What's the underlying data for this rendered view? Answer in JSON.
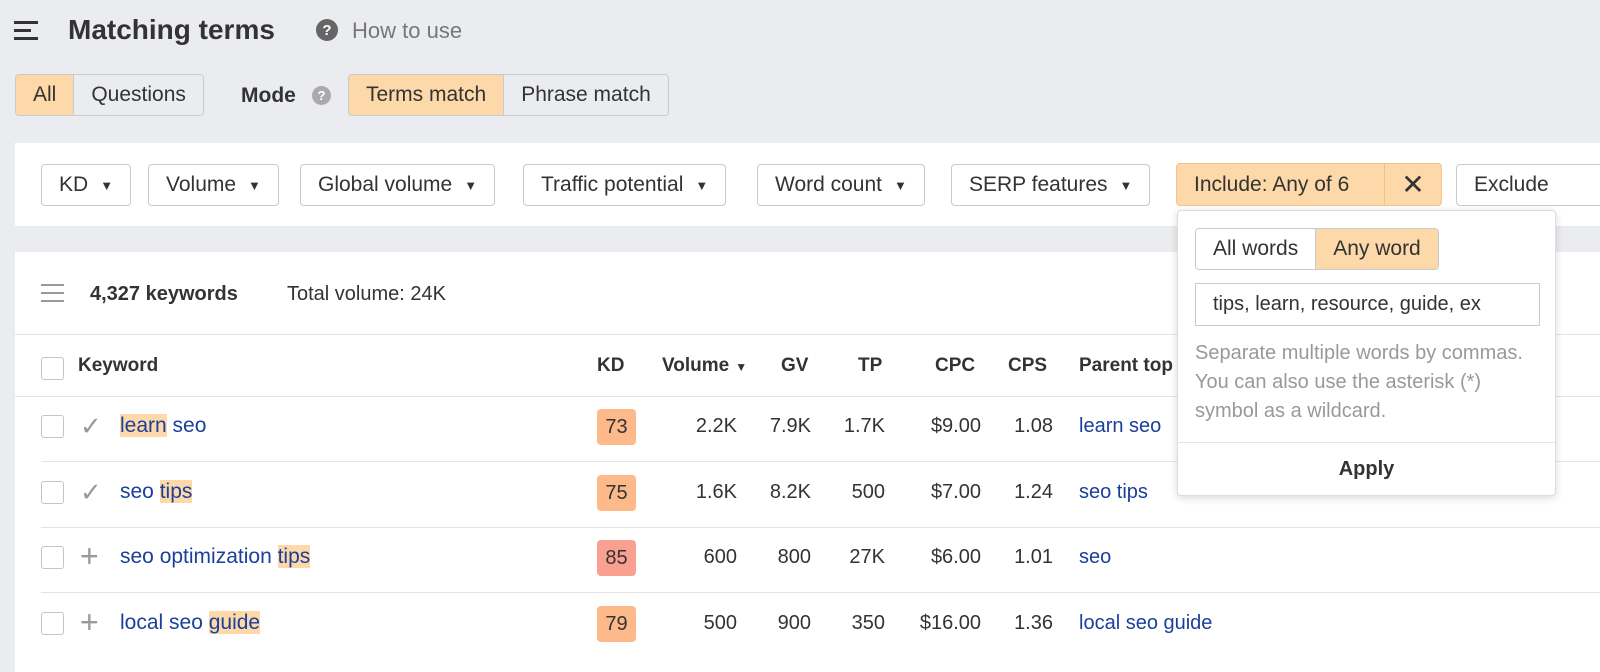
{
  "header": {
    "title": "Matching terms",
    "help_link": "How to use"
  },
  "type_tabs": [
    {
      "label": "All",
      "active": true
    },
    {
      "label": "Questions",
      "active": false
    }
  ],
  "mode": {
    "label": "Mode",
    "options": [
      {
        "label": "Terms match",
        "active": true
      },
      {
        "label": "Phrase match",
        "active": false
      }
    ]
  },
  "filters": [
    "KD",
    "Volume",
    "Global volume",
    "Traffic potential",
    "Word count",
    "SERP features"
  ],
  "include_filter": {
    "label": "Include: Any of 6"
  },
  "exclude_filter": {
    "label": "Exclude"
  },
  "include_popup": {
    "modes": [
      {
        "label": "All words",
        "active": false
      },
      {
        "label": "Any word",
        "active": true
      }
    ],
    "input_value": "tips, learn, resource, guide, ex",
    "hint": "Separate multiple words by commas. You can also use the asterisk (*) symbol as a wildcard.",
    "apply": "Apply"
  },
  "summary": {
    "count": "4,327 keywords",
    "total_volume": "Total volume: 24K"
  },
  "table": {
    "columns": {
      "keyword": "Keyword",
      "kd": "KD",
      "volume": "Volume",
      "gv": "GV",
      "tp": "TP",
      "cpc": "CPC",
      "cps": "CPS",
      "parent": "Parent top"
    },
    "rows": [
      {
        "status": "check",
        "parts": [
          {
            "t": "learn",
            "h": true
          },
          {
            "t": " seo",
            "h": false
          }
        ],
        "kd": "73",
        "kd_color": "#fdb98a",
        "volume": "2.2K",
        "gv": "7.9K",
        "tp": "1.7K",
        "cpc": "$9.00",
        "cps": "1.08",
        "parent": "learn seo"
      },
      {
        "status": "check",
        "parts": [
          {
            "t": "seo ",
            "h": false
          },
          {
            "t": "tips",
            "h": true
          }
        ],
        "kd": "75",
        "kd_color": "#fdb98a",
        "volume": "1.6K",
        "gv": "8.2K",
        "tp": "500",
        "cpc": "$7.00",
        "cps": "1.24",
        "parent": "seo tips"
      },
      {
        "status": "plus",
        "parts": [
          {
            "t": "seo optimization ",
            "h": false
          },
          {
            "t": "tips",
            "h": true
          }
        ],
        "kd": "85",
        "kd_color": "#f9a091",
        "volume": "600",
        "gv": "800",
        "tp": "27K",
        "cpc": "$6.00",
        "cps": "1.01",
        "parent": "seo"
      },
      {
        "status": "plus",
        "parts": [
          {
            "t": "local seo ",
            "h": false
          },
          {
            "t": "guide",
            "h": true
          }
        ],
        "kd": "79",
        "kd_color": "#fdb98a",
        "volume": "500",
        "gv": "900",
        "tp": "350",
        "cpc": "$16.00",
        "cps": "1.36",
        "parent": "local seo guide"
      }
    ]
  }
}
